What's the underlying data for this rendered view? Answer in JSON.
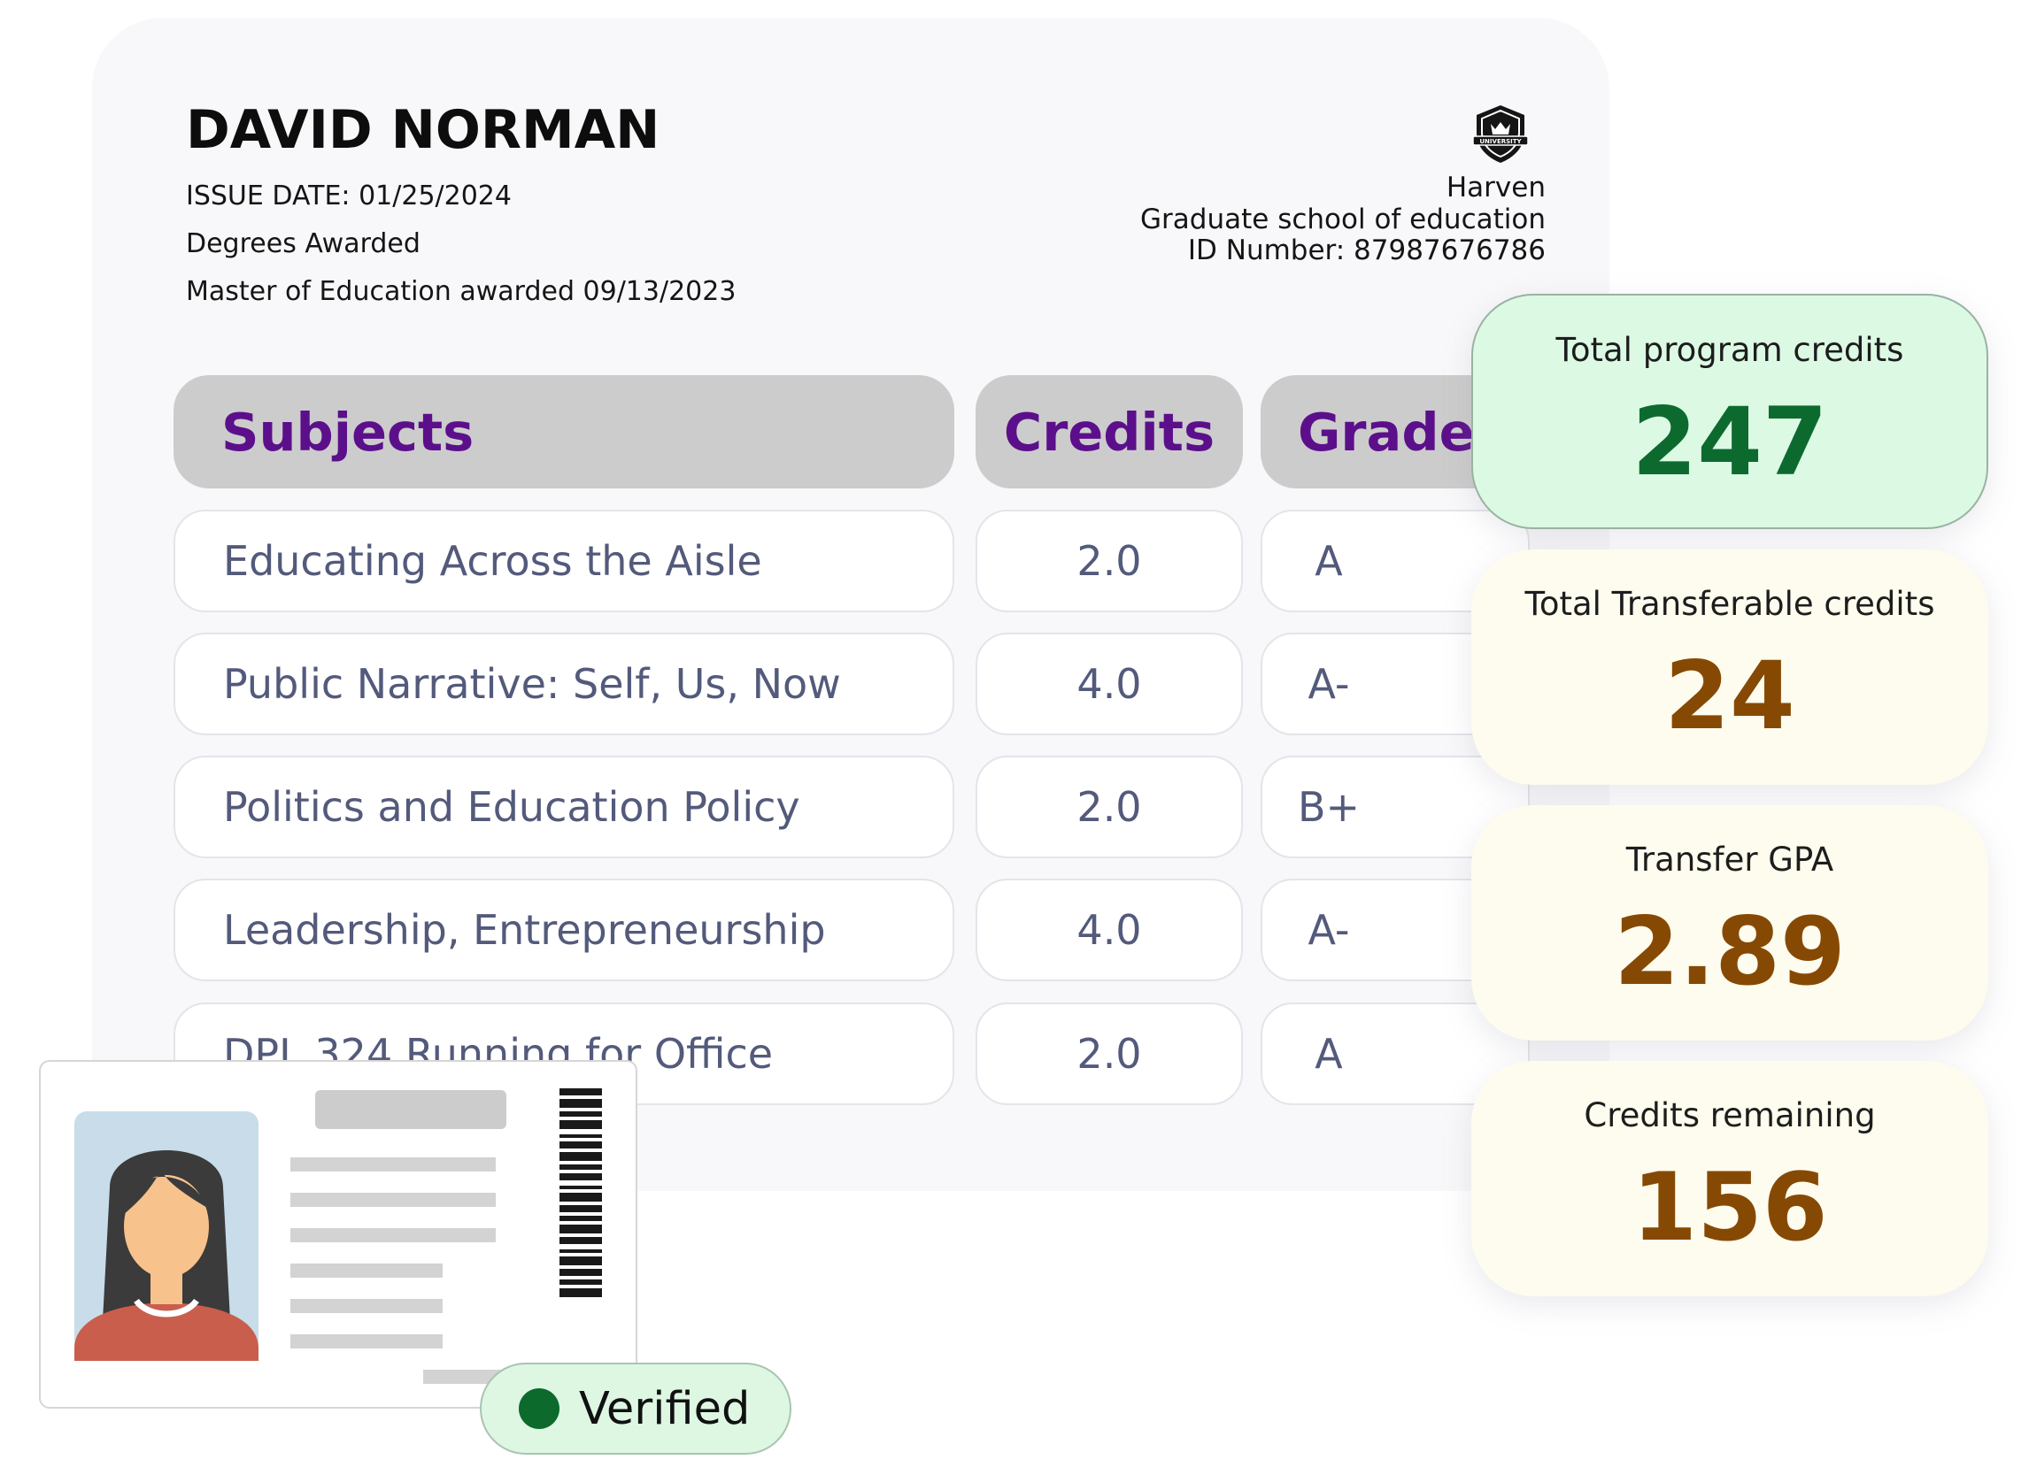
{
  "transcript": {
    "student_name": "DAVID NORMAN",
    "issue_date": "ISSUE DATE: 01/25/2024",
    "degrees_heading": "Degrees Awarded",
    "degree": "Master of Education awarded 09/13/2023",
    "institution": {
      "name": "Harven",
      "school": "Graduate school of education",
      "id_number": "ID Number: 87987676786",
      "crest_icon": "university-crest-icon"
    },
    "table": {
      "headers": {
        "subjects": "Subjects",
        "credits": "Credits",
        "grades": "Grades"
      },
      "rows": [
        {
          "subject": "Educating Across the Aisle",
          "credits": "2.0",
          "grade": "A"
        },
        {
          "subject": "Public Narrative: Self, Us, Now",
          "credits": "4.0",
          "grade": "A-"
        },
        {
          "subject": "Politics and Education Policy",
          "credits": "2.0",
          "grade": "B+"
        },
        {
          "subject": "Leadership, Entrepreneurship",
          "credits": "4.0",
          "grade": "A-"
        },
        {
          "subject": "DPL 324 Running for Office",
          "credits": "2.0",
          "grade": "A"
        }
      ]
    }
  },
  "stats": [
    {
      "label": "Total program credits",
      "value": "247",
      "color": "#0c6a2e"
    },
    {
      "label": "Total Transferable credits",
      "value": "24",
      "color": "#864904"
    },
    {
      "label": "Transfer GPA",
      "value": "2.89",
      "color": "#864904"
    },
    {
      "label": "Credits remaining",
      "value": "156",
      "color": "#864904"
    }
  ],
  "id_card": {
    "photo_icon": "person-avatar-icon",
    "barcode_icon": "barcode-icon"
  },
  "verified_badge": {
    "label": "Verified",
    "color": "#0b6a2c"
  }
}
